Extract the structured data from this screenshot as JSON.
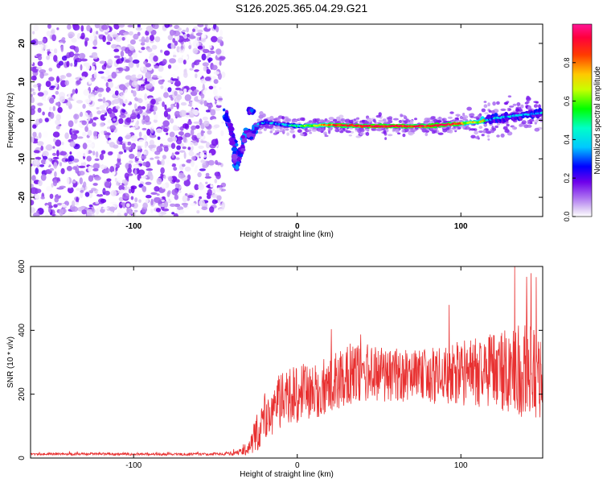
{
  "figure": {
    "title": "S126.2025.365.04.29.G21"
  },
  "chart_data": [
    {
      "type": "heatmap",
      "title": "S126.2025.365.04.29.G21",
      "xlabel": "Height of straight line (km)",
      "ylabel": "Frequency (Hz)",
      "xlim": [
        -163,
        150
      ],
      "ylim": [
        -25,
        25
      ],
      "x_ticks": [
        -100,
        0,
        100
      ],
      "x_tick_labels": [
        "-100",
        "0",
        "100"
      ],
      "y_ticks": [
        -20,
        -10,
        0,
        10,
        20
      ],
      "y_tick_labels": [
        "-20",
        "-10",
        "0",
        "10",
        "20"
      ],
      "colorbar": {
        "label": "Normalized spectral amplitude",
        "range": [
          0,
          1
        ],
        "ticks": [
          0.0,
          0.2,
          0.4,
          0.6,
          0.8
        ],
        "tick_labels": [
          "0.0",
          "0.2",
          "0.4",
          "0.6",
          "0.8"
        ],
        "colors": [
          "#ffffff",
          "#8a2be2",
          "#0000ff",
          "#00ffff",
          "#00ff00",
          "#ffff00",
          "#ff8000",
          "#ff0000",
          "#ff1493"
        ]
      },
      "features": {
        "noise_region_x": [
          -163,
          -45
        ],
        "noise_peak_amplitude": 0.2,
        "feature_blob": {
          "x": -28,
          "f": 2.5,
          "amplitude": 0.3
        },
        "tail_trace": [
          [
            -44,
            2
          ],
          [
            -40,
            -3
          ],
          [
            -38,
            -8
          ],
          [
            -38,
            -13
          ],
          [
            -34,
            -8
          ],
          [
            -32,
            -3
          ],
          [
            -28,
            -4
          ],
          [
            -24,
            -1
          ]
        ],
        "main_trace": [
          [
            -24,
            -1
          ],
          [
            -20,
            -0.5
          ],
          [
            -10,
            -1
          ],
          [
            0,
            -1.5
          ],
          [
            20,
            -1.2
          ],
          [
            40,
            -1.5
          ],
          [
            60,
            -1.5
          ],
          [
            80,
            -1.5
          ],
          [
            95,
            -1.0
          ],
          [
            110,
            -0.5
          ],
          [
            120,
            0.5
          ],
          [
            140,
            1.5
          ],
          [
            150,
            2
          ]
        ],
        "main_trace_peak_amplitude": 0.9
      },
      "grid": false
    },
    {
      "type": "line",
      "xlabel": "Height of straight line (km)",
      "ylabel": "SNR (10 * v/v)",
      "xlim": [
        -163,
        150
      ],
      "ylim": [
        0,
        600
      ],
      "x_ticks": [
        -100,
        0,
        100
      ],
      "x_tick_labels": [
        "-100",
        "0",
        "100"
      ],
      "y_ticks": [
        0,
        200,
        400,
        600
      ],
      "y_tick_labels": [
        "0",
        "200",
        "400",
        "600"
      ],
      "color": "#e83030",
      "envelope": {
        "x": [
          -163,
          -140,
          -100,
          -60,
          -40,
          -30,
          -25,
          -20,
          -10,
          0,
          20,
          30,
          40,
          60,
          80,
          100,
          120,
          130,
          140,
          150
        ],
        "mean": [
          12,
          13,
          12,
          12,
          13,
          25,
          80,
          130,
          180,
          200,
          230,
          260,
          270,
          255,
          260,
          265,
          270,
          275,
          280,
          270
        ],
        "spread": [
          3,
          4,
          4,
          4,
          5,
          15,
          60,
          80,
          90,
          90,
          90,
          100,
          90,
          80,
          90,
          100,
          120,
          140,
          160,
          150
        ]
      },
      "grid": false
    }
  ]
}
